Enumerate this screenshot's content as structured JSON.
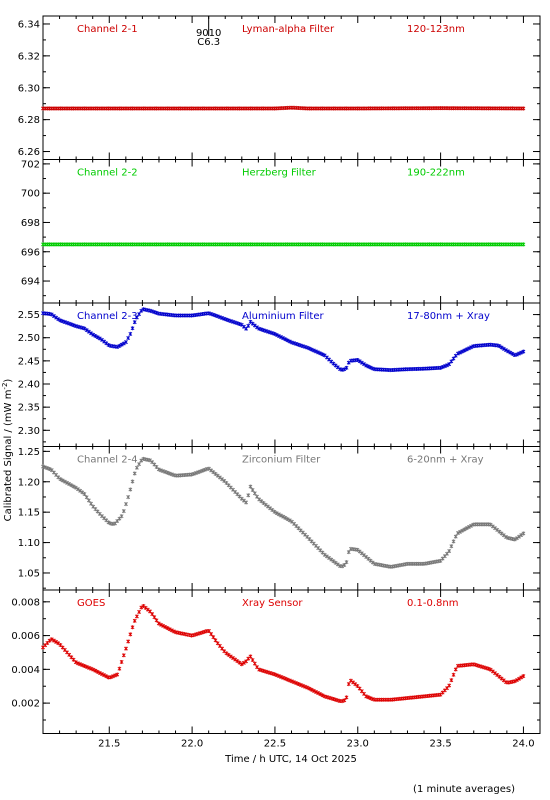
{
  "chart_data": {
    "type": "scatter",
    "x_axis": {
      "label": "Time / h UTC, 14 Oct 2025",
      "range": [
        21.1,
        24.1
      ],
      "ticks": [
        "21.5",
        "22.0",
        "22.5",
        "23.0",
        "23.5",
        "24.0"
      ],
      "tick_values": [
        21.5,
        22.0,
        22.5,
        23.0,
        23.5,
        24.0
      ]
    },
    "y_axis_label": "Calibrated Signal / (mW m",
    "y_axis_label_sup": "-2",
    "y_axis_label_end": ")",
    "footnote": "(1 minute averages)",
    "panels": [
      {
        "channel": "Channel 2-1",
        "filter": "Lyman-alpha Filter",
        "band": "120-123nm",
        "color": "#cc0000",
        "ylim": [
          6.255,
          6.345
        ],
        "y_ticks": [
          "6.26",
          "6.28",
          "6.30",
          "6.32",
          "6.34"
        ],
        "y_tick_values": [
          6.26,
          6.28,
          6.3,
          6.32,
          6.34
        ],
        "annotation": {
          "x": 22.1,
          "lines": [
            "9010",
            "C6.3"
          ]
        },
        "series": [
          [
            21.1,
            6.287
          ],
          [
            21.5,
            6.287
          ],
          [
            22.0,
            6.287
          ],
          [
            22.5,
            6.287
          ],
          [
            22.6,
            6.2875
          ],
          [
            22.7,
            6.287
          ],
          [
            23.0,
            6.287
          ],
          [
            23.5,
            6.2872
          ],
          [
            24.0,
            6.287
          ]
        ]
      },
      {
        "channel": "Channel 2-2",
        "filter": "Herzberg Filter",
        "band": "190-222nm",
        "color": "#00cc00",
        "ylim": [
          692.5,
          702.3
        ],
        "y_ticks": [
          "694",
          "696",
          "698",
          "700",
          "702"
        ],
        "y_tick_values": [
          694,
          696,
          698,
          700,
          702
        ],
        "series": [
          [
            21.1,
            696.5
          ],
          [
            21.5,
            696.5
          ],
          [
            22.0,
            696.5
          ],
          [
            22.5,
            696.5
          ],
          [
            22.9,
            696.5
          ],
          [
            23.0,
            696.5
          ],
          [
            23.5,
            696.5
          ],
          [
            24.0,
            696.5
          ]
        ]
      },
      {
        "channel": "Channel 2-3",
        "filter": "Aluminium Filter",
        "band": "17-80nm + Xray",
        "color": "#0000cc",
        "ylim": [
          2.265,
          2.575
        ],
        "y_ticks": [
          "2.30",
          "2.35",
          "2.40",
          "2.45",
          "2.50",
          "2.55"
        ],
        "y_tick_values": [
          2.3,
          2.35,
          2.4,
          2.45,
          2.5,
          2.55
        ],
        "series": [
          [
            21.1,
            2.553
          ],
          [
            21.15,
            2.551
          ],
          [
            21.2,
            2.538
          ],
          [
            21.3,
            2.525
          ],
          [
            21.35,
            2.52
          ],
          [
            21.4,
            2.507
          ],
          [
            21.45,
            2.497
          ],
          [
            21.5,
            2.483
          ],
          [
            21.55,
            2.48
          ],
          [
            21.6,
            2.49
          ],
          [
            21.63,
            2.51
          ],
          [
            21.66,
            2.54
          ],
          [
            21.7,
            2.562
          ],
          [
            21.75,
            2.558
          ],
          [
            21.8,
            2.552
          ],
          [
            21.9,
            2.548
          ],
          [
            22.0,
            2.548
          ],
          [
            22.1,
            2.553
          ],
          [
            22.15,
            2.547
          ],
          [
            22.2,
            2.54
          ],
          [
            22.3,
            2.528
          ],
          [
            22.33,
            2.518
          ],
          [
            22.35,
            2.535
          ],
          [
            22.4,
            2.52
          ],
          [
            22.5,
            2.508
          ],
          [
            22.6,
            2.49
          ],
          [
            22.7,
            2.478
          ],
          [
            22.8,
            2.462
          ],
          [
            22.85,
            2.445
          ],
          [
            22.9,
            2.43
          ],
          [
            22.93,
            2.433
          ],
          [
            22.95,
            2.45
          ],
          [
            23.0,
            2.452
          ],
          [
            23.05,
            2.44
          ],
          [
            23.1,
            2.432
          ],
          [
            23.2,
            2.43
          ],
          [
            23.3,
            2.432
          ],
          [
            23.4,
            2.433
          ],
          [
            23.5,
            2.435
          ],
          [
            23.55,
            2.442
          ],
          [
            23.6,
            2.465
          ],
          [
            23.7,
            2.482
          ],
          [
            23.8,
            2.485
          ],
          [
            23.85,
            2.483
          ],
          [
            23.9,
            2.472
          ],
          [
            23.95,
            2.462
          ],
          [
            24.0,
            2.47
          ]
        ]
      },
      {
        "channel": "Channel 2-4",
        "filter": "Zirconium Filter",
        "band": "6-20nm + Xray",
        "color": "#777777",
        "ylim": [
          1.022,
          1.258
        ],
        "y_ticks": [
          "1.05",
          "1.10",
          "1.15",
          "1.20",
          "1.25"
        ],
        "y_tick_values": [
          1.05,
          1.1,
          1.15,
          1.2,
          1.25
        ],
        "series": [
          [
            21.1,
            1.225
          ],
          [
            21.15,
            1.22
          ],
          [
            21.2,
            1.205
          ],
          [
            21.3,
            1.19
          ],
          [
            21.35,
            1.18
          ],
          [
            21.4,
            1.16
          ],
          [
            21.45,
            1.145
          ],
          [
            21.5,
            1.132
          ],
          [
            21.53,
            1.13
          ],
          [
            21.58,
            1.145
          ],
          [
            21.62,
            1.18
          ],
          [
            21.66,
            1.22
          ],
          [
            21.7,
            1.238
          ],
          [
            21.75,
            1.235
          ],
          [
            21.8,
            1.22
          ],
          [
            21.9,
            1.21
          ],
          [
            22.0,
            1.212
          ],
          [
            22.1,
            1.222
          ],
          [
            22.2,
            1.2
          ],
          [
            22.3,
            1.172
          ],
          [
            22.33,
            1.165
          ],
          [
            22.35,
            1.193
          ],
          [
            22.4,
            1.172
          ],
          [
            22.5,
            1.15
          ],
          [
            22.6,
            1.135
          ],
          [
            22.7,
            1.108
          ],
          [
            22.8,
            1.08
          ],
          [
            22.9,
            1.06
          ],
          [
            22.93,
            1.065
          ],
          [
            22.95,
            1.09
          ],
          [
            23.0,
            1.088
          ],
          [
            23.1,
            1.065
          ],
          [
            23.2,
            1.06
          ],
          [
            23.3,
            1.065
          ],
          [
            23.4,
            1.065
          ],
          [
            23.5,
            1.07
          ],
          [
            23.55,
            1.085
          ],
          [
            23.6,
            1.115
          ],
          [
            23.7,
            1.13
          ],
          [
            23.8,
            1.13
          ],
          [
            23.9,
            1.108
          ],
          [
            23.95,
            1.105
          ],
          [
            24.0,
            1.115
          ]
        ]
      },
      {
        "channel": "GOES",
        "filter": "Xray Sensor",
        "band": "0.1-0.8nm",
        "color": "#dd0000",
        "ylim": [
          0.0002,
          0.0087
        ],
        "y_ticks": [
          "0.002",
          "0.004",
          "0.006",
          "0.008"
        ],
        "y_tick_values": [
          0.002,
          0.004,
          0.006,
          0.008
        ],
        "series": [
          [
            21.1,
            0.0053
          ],
          [
            21.15,
            0.0058
          ],
          [
            21.2,
            0.0055
          ],
          [
            21.3,
            0.0044
          ],
          [
            21.4,
            0.004
          ],
          [
            21.5,
            0.0035
          ],
          [
            21.55,
            0.0037
          ],
          [
            21.6,
            0.0052
          ],
          [
            21.65,
            0.0068
          ],
          [
            21.7,
            0.0078
          ],
          [
            21.75,
            0.0074
          ],
          [
            21.8,
            0.0067
          ],
          [
            21.9,
            0.0062
          ],
          [
            22.0,
            0.006
          ],
          [
            22.1,
            0.0063
          ],
          [
            22.15,
            0.0056
          ],
          [
            22.2,
            0.005
          ],
          [
            22.3,
            0.0043
          ],
          [
            22.33,
            0.0045
          ],
          [
            22.35,
            0.0048
          ],
          [
            22.4,
            0.004
          ],
          [
            22.5,
            0.0037
          ],
          [
            22.6,
            0.0033
          ],
          [
            22.7,
            0.0029
          ],
          [
            22.8,
            0.0024
          ],
          [
            22.9,
            0.0021
          ],
          [
            22.93,
            0.0022
          ],
          [
            22.95,
            0.0034
          ],
          [
            23.0,
            0.003
          ],
          [
            23.05,
            0.0024
          ],
          [
            23.1,
            0.0022
          ],
          [
            23.2,
            0.0022
          ],
          [
            23.3,
            0.0023
          ],
          [
            23.4,
            0.0024
          ],
          [
            23.5,
            0.0025
          ],
          [
            23.55,
            0.003
          ],
          [
            23.6,
            0.0042
          ],
          [
            23.7,
            0.0043
          ],
          [
            23.8,
            0.004
          ],
          [
            23.9,
            0.0032
          ],
          [
            23.95,
            0.0033
          ],
          [
            24.0,
            0.0036
          ]
        ]
      }
    ]
  }
}
